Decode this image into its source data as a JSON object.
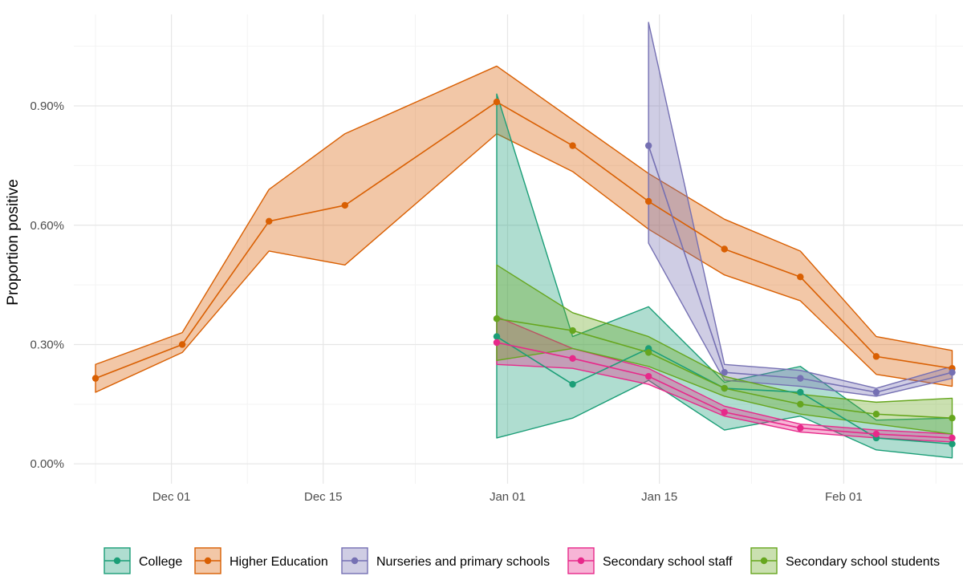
{
  "chart_data": {
    "type": "line",
    "ylabel": "Proportion positive",
    "xlabel": "",
    "y_unit": "%",
    "ylim": [
      -0.05,
      1.13
    ],
    "xlim": [
      "2020-11-22",
      "2021-02-12"
    ],
    "grid": true,
    "legend_position": "bottom",
    "x_ticks": [
      {
        "date": "2020-12-01",
        "label": "Dec 01"
      },
      {
        "date": "2020-12-15",
        "label": "Dec 15"
      },
      {
        "date": "2021-01-01",
        "label": "Jan 01"
      },
      {
        "date": "2021-01-15",
        "label": "Jan 15"
      },
      {
        "date": "2021-02-01",
        "label": "Feb 01"
      }
    ],
    "y_ticks": [
      {
        "value": 0.0,
        "label": "0.00%"
      },
      {
        "value": 0.3,
        "label": "0.30%"
      },
      {
        "value": 0.6,
        "label": "0.60%"
      },
      {
        "value": 0.9,
        "label": "0.90%"
      }
    ],
    "series": [
      {
        "name": "Higher Education",
        "color": "#d95f02",
        "points": [
          {
            "x": "2020-11-24",
            "y": 0.215,
            "lo": 0.18,
            "hi": 0.25
          },
          {
            "x": "2020-12-02",
            "y": 0.3,
            "lo": 0.28,
            "hi": 0.33
          },
          {
            "x": "2020-12-10",
            "y": 0.61,
            "lo": 0.535,
            "hi": 0.69
          },
          {
            "x": "2020-12-17",
            "y": 0.65,
            "lo": 0.5,
            "hi": 0.83
          },
          {
            "x": "2020-12-31",
            "y": 0.91,
            "lo": 0.83,
            "hi": 1.0
          },
          {
            "x": "2021-01-07",
            "y": 0.8,
            "lo": 0.735,
            "hi": 0.865
          },
          {
            "x": "2021-01-14",
            "y": 0.66,
            "lo": 0.59,
            "hi": 0.73
          },
          {
            "x": "2021-01-21",
            "y": 0.54,
            "lo": 0.475,
            "hi": 0.615
          },
          {
            "x": "2021-01-28",
            "y": 0.47,
            "lo": 0.41,
            "hi": 0.535
          },
          {
            "x": "2021-02-04",
            "y": 0.27,
            "lo": 0.225,
            "hi": 0.32
          },
          {
            "x": "2021-02-11",
            "y": 0.24,
            "lo": 0.195,
            "hi": 0.285
          }
        ]
      },
      {
        "name": "College",
        "color": "#1b9e77",
        "points": [
          {
            "x": "2020-12-31",
            "y": 0.32,
            "lo": 0.065,
            "hi": 0.93
          },
          {
            "x": "2021-01-07",
            "y": 0.2,
            "lo": 0.115,
            "hi": 0.32
          },
          {
            "x": "2021-01-14",
            "y": 0.29,
            "lo": 0.21,
            "hi": 0.395
          },
          {
            "x": "2021-01-21",
            "y": 0.19,
            "lo": 0.085,
            "hi": 0.205
          },
          {
            "x": "2021-01-28",
            "y": 0.18,
            "lo": 0.12,
            "hi": 0.245
          },
          {
            "x": "2021-02-04",
            "y": 0.065,
            "lo": 0.035,
            "hi": 0.11
          },
          {
            "x": "2021-02-11",
            "y": 0.05,
            "lo": 0.015,
            "hi": 0.115
          }
        ]
      },
      {
        "name": "Nurseries and primary schools",
        "color": "#7570b3",
        "points": [
          {
            "x": "2021-01-14",
            "y": 0.8,
            "lo": 0.555,
            "hi": 1.11
          },
          {
            "x": "2021-01-21",
            "y": 0.23,
            "lo": 0.21,
            "hi": 0.25
          },
          {
            "x": "2021-01-28",
            "y": 0.215,
            "lo": 0.195,
            "hi": 0.235
          },
          {
            "x": "2021-02-04",
            "y": 0.18,
            "lo": 0.17,
            "hi": 0.19
          },
          {
            "x": "2021-02-11",
            "y": 0.23,
            "lo": 0.215,
            "hi": 0.245
          }
        ]
      },
      {
        "name": "Secondary school staff",
        "color": "#e7298a",
        "points": [
          {
            "x": "2020-12-31",
            "y": 0.305,
            "lo": 0.25,
            "hi": 0.37
          },
          {
            "x": "2021-01-07",
            "y": 0.265,
            "lo": 0.24,
            "hi": 0.29
          },
          {
            "x": "2021-01-14",
            "y": 0.22,
            "lo": 0.2,
            "hi": 0.24
          },
          {
            "x": "2021-01-21",
            "y": 0.13,
            "lo": 0.12,
            "hi": 0.145
          },
          {
            "x": "2021-01-28",
            "y": 0.09,
            "lo": 0.08,
            "hi": 0.1
          },
          {
            "x": "2021-02-04",
            "y": 0.075,
            "lo": 0.065,
            "hi": 0.085
          },
          {
            "x": "2021-02-11",
            "y": 0.065,
            "lo": 0.055,
            "hi": 0.075
          }
        ]
      },
      {
        "name": "Secondary school students",
        "color": "#66a61e",
        "points": [
          {
            "x": "2020-12-31",
            "y": 0.365,
            "lo": 0.26,
            "hi": 0.5
          },
          {
            "x": "2021-01-07",
            "y": 0.335,
            "lo": 0.29,
            "hi": 0.38
          },
          {
            "x": "2021-01-14",
            "y": 0.28,
            "lo": 0.245,
            "hi": 0.32
          },
          {
            "x": "2021-01-21",
            "y": 0.19,
            "lo": 0.17,
            "hi": 0.22
          },
          {
            "x": "2021-01-28",
            "y": 0.15,
            "lo": 0.125,
            "hi": 0.175
          },
          {
            "x": "2021-02-04",
            "y": 0.125,
            "lo": 0.1,
            "hi": 0.155
          },
          {
            "x": "2021-02-11",
            "y": 0.115,
            "lo": 0.075,
            "hi": 0.165
          }
        ]
      }
    ],
    "legend_order": [
      "College",
      "Higher Education",
      "Nurseries and primary schools",
      "Secondary school staff",
      "Secondary school students"
    ]
  }
}
